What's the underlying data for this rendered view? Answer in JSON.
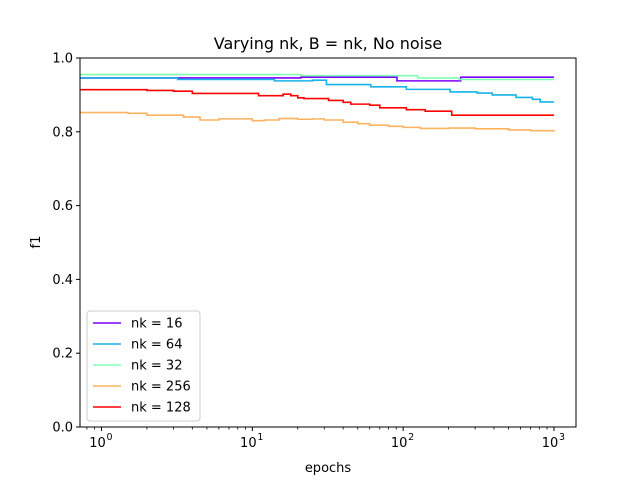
{
  "chart_data": {
    "type": "line",
    "title": "Varying nk, B = nk, No noise",
    "xlabel": "epochs",
    "ylabel": "f1",
    "xscale": "log",
    "xlim": [
      0.72,
      1400
    ],
    "ylim": [
      0.0,
      1.0
    ],
    "xticks": [
      {
        "value": 1,
        "base": "10",
        "exp": "0"
      },
      {
        "value": 10,
        "base": "10",
        "exp": "1"
      },
      {
        "value": 100,
        "base": "10",
        "exp": "2"
      },
      {
        "value": 1000,
        "base": "10",
        "exp": "3"
      }
    ],
    "yticks": [
      "0.0",
      "0.2",
      "0.4",
      "0.6",
      "0.8",
      "1.0"
    ],
    "legend_position": "lower-left",
    "series": [
      {
        "name": "nk = 16",
        "color": "#7f00ff",
        "points": [
          [
            0.72,
            0.946
          ],
          [
            20,
            0.946
          ],
          [
            21,
            0.948
          ],
          [
            90,
            0.948
          ],
          [
            91,
            0.938
          ],
          [
            240,
            0.938
          ],
          [
            241,
            0.948
          ],
          [
            1000,
            0.948
          ]
        ]
      },
      {
        "name": "nk = 64",
        "color": "#17b2e9",
        "points": [
          [
            0.72,
            0.946
          ],
          [
            3,
            0.946
          ],
          [
            3.2,
            0.942
          ],
          [
            13,
            0.942
          ],
          [
            14,
            0.938
          ],
          [
            24,
            0.938
          ],
          [
            25,
            0.94
          ],
          [
            30,
            0.94
          ],
          [
            31,
            0.928
          ],
          [
            60,
            0.928
          ],
          [
            61,
            0.922
          ],
          [
            100,
            0.922
          ],
          [
            105,
            0.915
          ],
          [
            200,
            0.915
          ],
          [
            205,
            0.908
          ],
          [
            300,
            0.908
          ],
          [
            310,
            0.905
          ],
          [
            380,
            0.905
          ],
          [
            390,
            0.9
          ],
          [
            550,
            0.9
          ],
          [
            560,
            0.893
          ],
          [
            700,
            0.893
          ],
          [
            720,
            0.888
          ],
          [
            800,
            0.888
          ],
          [
            810,
            0.881
          ],
          [
            1000,
            0.881
          ]
        ]
      },
      {
        "name": "nk = 32",
        "color": "#80ffb4",
        "points": [
          [
            0.72,
            0.955
          ],
          [
            20,
            0.955
          ],
          [
            21,
            0.952
          ],
          [
            120,
            0.952
          ],
          [
            125,
            0.946
          ],
          [
            230,
            0.946
          ],
          [
            235,
            0.942
          ],
          [
            1000,
            0.942
          ]
        ]
      },
      {
        "name": "nk = 256",
        "color": "#ffb360",
        "points": [
          [
            0.72,
            0.852
          ],
          [
            1.5,
            0.85
          ],
          [
            2,
            0.845
          ],
          [
            3,
            0.845
          ],
          [
            3.5,
            0.84
          ],
          [
            4.5,
            0.832
          ],
          [
            6,
            0.835
          ],
          [
            8,
            0.835
          ],
          [
            10,
            0.83
          ],
          [
            12,
            0.832
          ],
          [
            15,
            0.836
          ],
          [
            20,
            0.834
          ],
          [
            25,
            0.835
          ],
          [
            30,
            0.832
          ],
          [
            40,
            0.826
          ],
          [
            50,
            0.822
          ],
          [
            60,
            0.818
          ],
          [
            80,
            0.815
          ],
          [
            100,
            0.812
          ],
          [
            130,
            0.809
          ],
          [
            200,
            0.81
          ],
          [
            300,
            0.808
          ],
          [
            500,
            0.805
          ],
          [
            700,
            0.803
          ],
          [
            1000,
            0.8
          ]
        ]
      },
      {
        "name": "nk = 128",
        "color": "#ff0000",
        "points": [
          [
            0.72,
            0.914
          ],
          [
            1.5,
            0.914
          ],
          [
            2,
            0.912
          ],
          [
            3,
            0.91
          ],
          [
            4,
            0.904
          ],
          [
            10,
            0.904
          ],
          [
            11,
            0.898
          ],
          [
            15,
            0.898
          ],
          [
            16,
            0.902
          ],
          [
            18,
            0.898
          ],
          [
            20,
            0.892
          ],
          [
            22,
            0.89
          ],
          [
            30,
            0.89
          ],
          [
            32,
            0.885
          ],
          [
            40,
            0.88
          ],
          [
            45,
            0.875
          ],
          [
            60,
            0.872
          ],
          [
            70,
            0.865
          ],
          [
            100,
            0.865
          ],
          [
            105,
            0.86
          ],
          [
            130,
            0.86
          ],
          [
            140,
            0.856
          ],
          [
            200,
            0.856
          ],
          [
            210,
            0.845
          ],
          [
            1000,
            0.845
          ]
        ]
      }
    ],
    "legend_order": [
      "nk = 16",
      "nk = 64",
      "nk = 32",
      "nk = 256",
      "nk = 128"
    ]
  }
}
